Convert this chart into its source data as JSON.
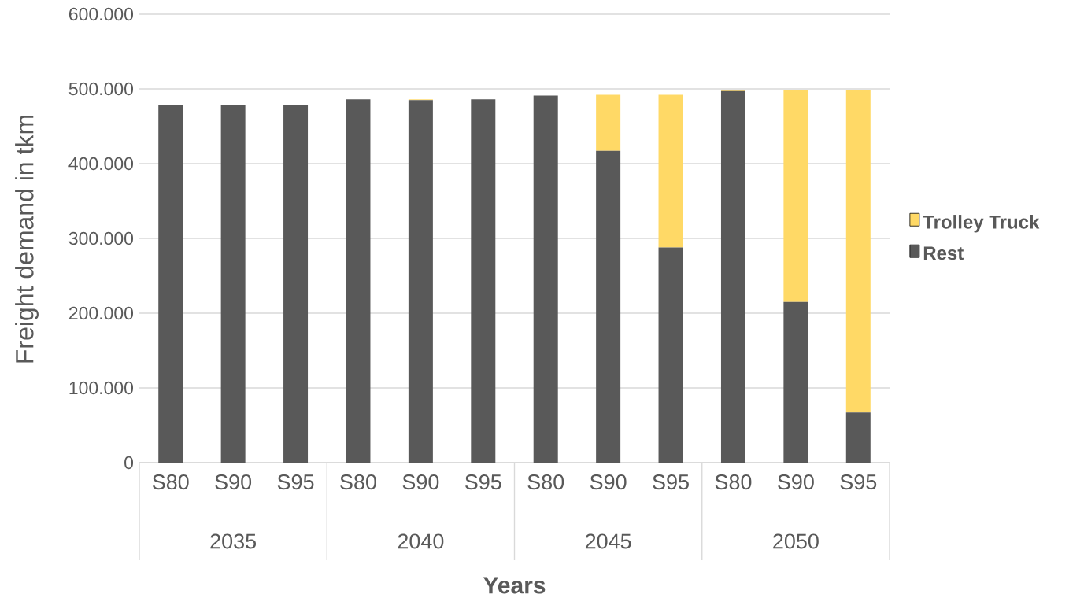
{
  "chart_data": {
    "type": "bar",
    "stacked": true,
    "xlabel": "Years",
    "ylabel": "Freight demand in tkm",
    "categories": [
      "S80",
      "S90",
      "S95",
      "S80",
      "S90",
      "S95",
      "S80",
      "S90",
      "S95",
      "S80",
      "S90",
      "S95"
    ],
    "annotations": [
      "2035",
      "2040",
      "2045",
      "2050"
    ],
    "series": [
      {
        "name": "Rest",
        "color": "#595959",
        "values": [
          478000,
          478000,
          478000,
          486000,
          485000,
          486000,
          491000,
          417000,
          288000,
          497000,
          215000,
          67000
        ]
      },
      {
        "name": "Trolley Truck",
        "color": "#ffd966",
        "values": [
          0,
          0,
          0,
          0,
          1000,
          0,
          null,
          75000,
          204000,
          1000,
          283000,
          431000
        ]
      }
    ],
    "ylim": [
      0,
      600000
    ],
    "yticks": [
      {
        "value": 0,
        "label": "0"
      },
      {
        "value": 100000,
        "label": "100.000"
      },
      {
        "value": 200000,
        "label": "200.000"
      },
      {
        "value": 300000,
        "label": "300.000"
      },
      {
        "value": 400000,
        "label": "400.000"
      },
      {
        "value": 500000,
        "label": "500.000"
      },
      {
        "value": 600000,
        "label": "600.000"
      }
    ],
    "grid": "y",
    "legend": "right"
  }
}
